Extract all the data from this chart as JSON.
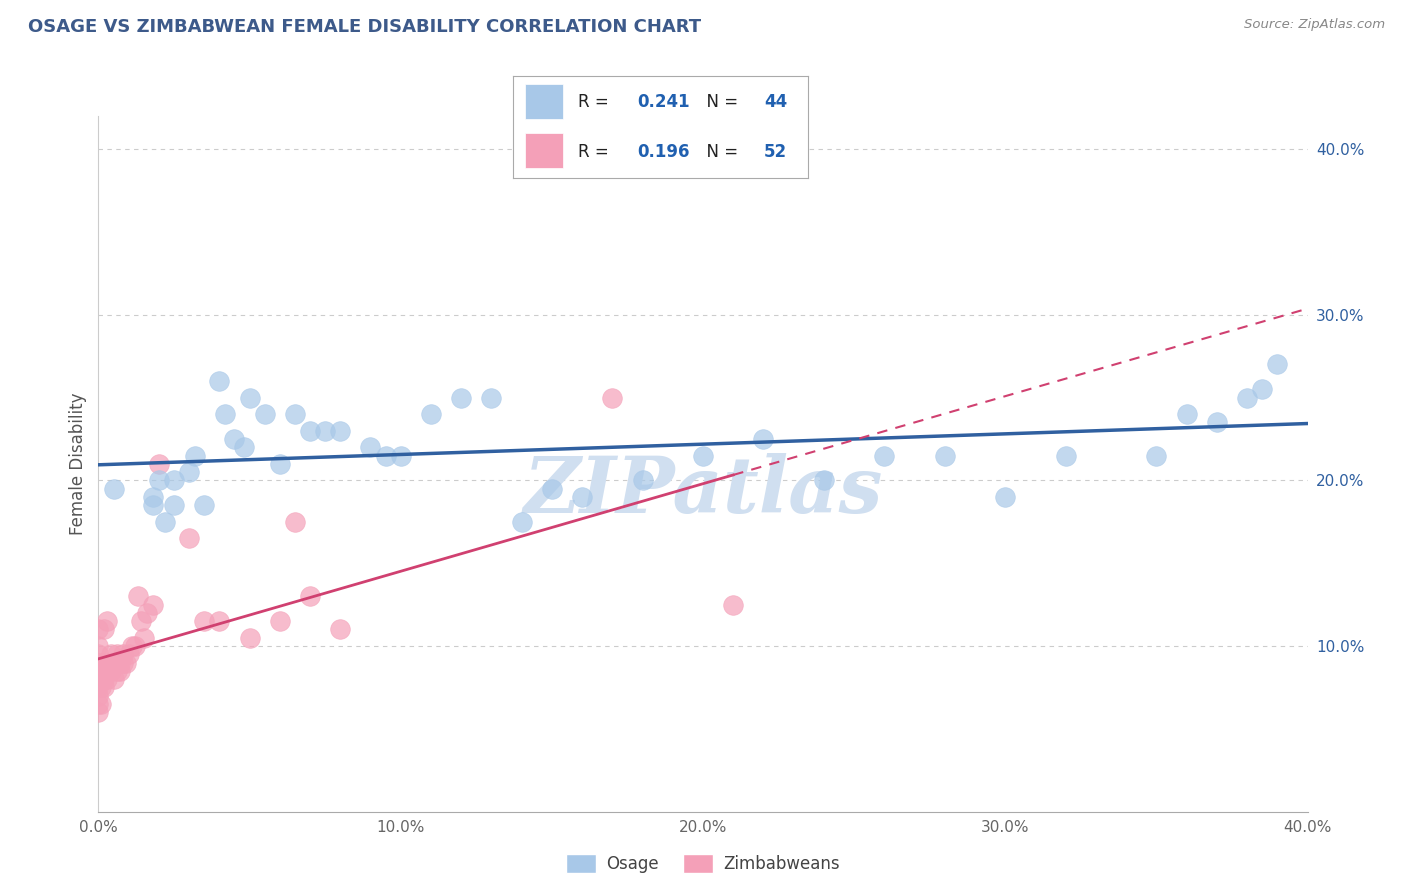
{
  "title": "OSAGE VS ZIMBABWEAN FEMALE DISABILITY CORRELATION CHART",
  "source_text": "Source: ZipAtlas.com",
  "ylabel": "Female Disability",
  "xlim": [
    0.0,
    0.4
  ],
  "ylim": [
    0.0,
    0.42
  ],
  "xtick_labels": [
    "0.0%",
    "",
    "",
    "",
    "",
    "10.0%",
    "",
    "",
    "",
    "",
    "20.0%",
    "",
    "",
    "",
    "",
    "30.0%",
    "",
    "",
    "",
    "",
    "40.0%"
  ],
  "xtick_vals": [
    0.0,
    0.02,
    0.04,
    0.06,
    0.08,
    0.1,
    0.12,
    0.14,
    0.16,
    0.18,
    0.2,
    0.22,
    0.24,
    0.26,
    0.28,
    0.3,
    0.32,
    0.34,
    0.36,
    0.38,
    0.4
  ],
  "ytick_vals": [
    0.1,
    0.2,
    0.3,
    0.4
  ],
  "ytick_labels": [
    "10.0%",
    "20.0%",
    "30.0%",
    "40.0%"
  ],
  "legend_labels": [
    "Osage",
    "Zimbabweans"
  ],
  "R_osage": 0.241,
  "N_osage": 44,
  "R_zimb": 0.196,
  "N_zimb": 52,
  "blue_color": "#a8c8e8",
  "pink_color": "#f4a0b8",
  "blue_line_color": "#3060a0",
  "pink_line_color": "#d04070",
  "title_color": "#3d5a8a",
  "watermark_color": "#d0dff0",
  "legend_r_n_color": "#2060b0",
  "osage_x": [
    0.005,
    0.018,
    0.018,
    0.02,
    0.022,
    0.025,
    0.025,
    0.03,
    0.032,
    0.035,
    0.04,
    0.042,
    0.045,
    0.048,
    0.05,
    0.055,
    0.06,
    0.065,
    0.07,
    0.075,
    0.08,
    0.09,
    0.095,
    0.1,
    0.11,
    0.12,
    0.13,
    0.14,
    0.15,
    0.16,
    0.18,
    0.2,
    0.22,
    0.24,
    0.26,
    0.28,
    0.3,
    0.32,
    0.35,
    0.36,
    0.37,
    0.38,
    0.385,
    0.39
  ],
  "osage_y": [
    0.195,
    0.19,
    0.185,
    0.2,
    0.175,
    0.185,
    0.2,
    0.205,
    0.215,
    0.185,
    0.26,
    0.24,
    0.225,
    0.22,
    0.25,
    0.24,
    0.21,
    0.24,
    0.23,
    0.23,
    0.23,
    0.22,
    0.215,
    0.215,
    0.24,
    0.25,
    0.25,
    0.175,
    0.195,
    0.19,
    0.2,
    0.215,
    0.225,
    0.2,
    0.215,
    0.215,
    0.19,
    0.215,
    0.215,
    0.24,
    0.235,
    0.25,
    0.255,
    0.27
  ],
  "zimb_x": [
    0.0,
    0.0,
    0.0,
    0.0,
    0.0,
    0.0,
    0.0,
    0.0,
    0.0,
    0.0,
    0.001,
    0.001,
    0.001,
    0.001,
    0.002,
    0.002,
    0.002,
    0.002,
    0.003,
    0.003,
    0.003,
    0.003,
    0.004,
    0.004,
    0.005,
    0.005,
    0.006,
    0.006,
    0.007,
    0.007,
    0.008,
    0.008,
    0.009,
    0.01,
    0.011,
    0.012,
    0.013,
    0.014,
    0.015,
    0.016,
    0.018,
    0.02,
    0.03,
    0.035,
    0.04,
    0.05,
    0.06,
    0.065,
    0.07,
    0.08,
    0.17,
    0.21
  ],
  "zimb_y": [
    0.06,
    0.065,
    0.07,
    0.075,
    0.08,
    0.085,
    0.09,
    0.095,
    0.1,
    0.11,
    0.065,
    0.075,
    0.08,
    0.09,
    0.075,
    0.08,
    0.085,
    0.11,
    0.08,
    0.085,
    0.09,
    0.115,
    0.085,
    0.095,
    0.08,
    0.09,
    0.085,
    0.095,
    0.085,
    0.09,
    0.09,
    0.095,
    0.09,
    0.095,
    0.1,
    0.1,
    0.13,
    0.115,
    0.105,
    0.12,
    0.125,
    0.21,
    0.165,
    0.115,
    0.115,
    0.105,
    0.115,
    0.175,
    0.13,
    0.11,
    0.25,
    0.125
  ]
}
